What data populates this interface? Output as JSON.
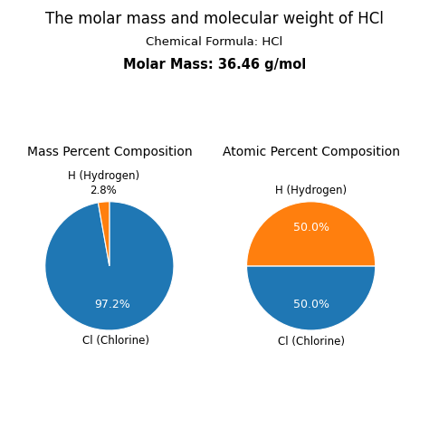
{
  "title": "The molar mass and molecular weight of HCl",
  "subtitle": "Chemical Formula: HCl",
  "annotations": [
    "Molar Mass: 36.46 g/mol"
  ],
  "chart_data": [
    {
      "type": "pie",
      "title": "Mass Percent Composition",
      "categories": [
        "Cl (Chlorine)",
        "H (Hydrogen)"
      ],
      "values": [
        97.2,
        2.8
      ],
      "value_labels": [
        "97.2%",
        "2.8%"
      ],
      "data_labels": true
    },
    {
      "type": "pie",
      "title": "Atomic Percent Composition",
      "categories": [
        "Cl (Chlorine)",
        "H (Hydrogen)"
      ],
      "values": [
        50.0,
        50.0
      ],
      "value_labels": [
        "50.0%",
        "50.0%"
      ],
      "data_labels": true
    }
  ]
}
